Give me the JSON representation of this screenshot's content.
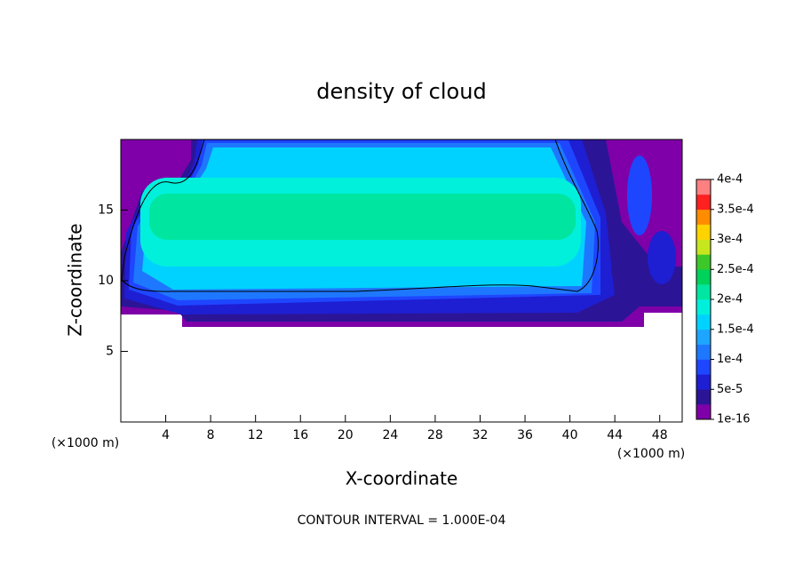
{
  "chart_data": {
    "type": "contour",
    "title": "density of cloud",
    "xlabel": "X-coordinate",
    "ylabel": "Z-coordinate",
    "x_unit": "(×1000 m)",
    "y_unit": "(×1000 m)",
    "annotation": "CONTOUR INTERVAL = 1.000E-04",
    "xlim": [
      0,
      50
    ],
    "ylim": [
      0,
      20
    ],
    "xticks": [
      4,
      8,
      12,
      16,
      20,
      24,
      28,
      32,
      36,
      40,
      44,
      48
    ],
    "yticks": [
      5,
      10,
      15
    ],
    "colorbar": {
      "lim": [
        0,
        0.0004
      ],
      "ticks": [
        {
          "value": 1e-16,
          "label": "1e-16"
        },
        {
          "value": 5e-05,
          "label": "5e-5"
        },
        {
          "value": 0.0001,
          "label": "1e-4"
        },
        {
          "value": 0.00015,
          "label": "1.5e-4"
        },
        {
          "value": 0.0002,
          "label": "2e-4"
        },
        {
          "value": 0.00025,
          "label": "2.5e-4"
        },
        {
          "value": 0.0003,
          "label": "3e-4"
        },
        {
          "value": 0.00035,
          "label": "3.5e-4"
        },
        {
          "value": 0.0004,
          "label": "4e-4"
        }
      ],
      "colors": [
        "#7f00a8",
        "#2c1496",
        "#1e1ed2",
        "#1e46ff",
        "#1e78ff",
        "#1ea5ff",
        "#00d2ff",
        "#00f0dc",
        "#00e6a0",
        "#00d25a",
        "#3cc828",
        "#c8e61e",
        "#ffd200",
        "#ff8c00",
        "#ff2020",
        "#ff8080"
      ]
    }
  }
}
